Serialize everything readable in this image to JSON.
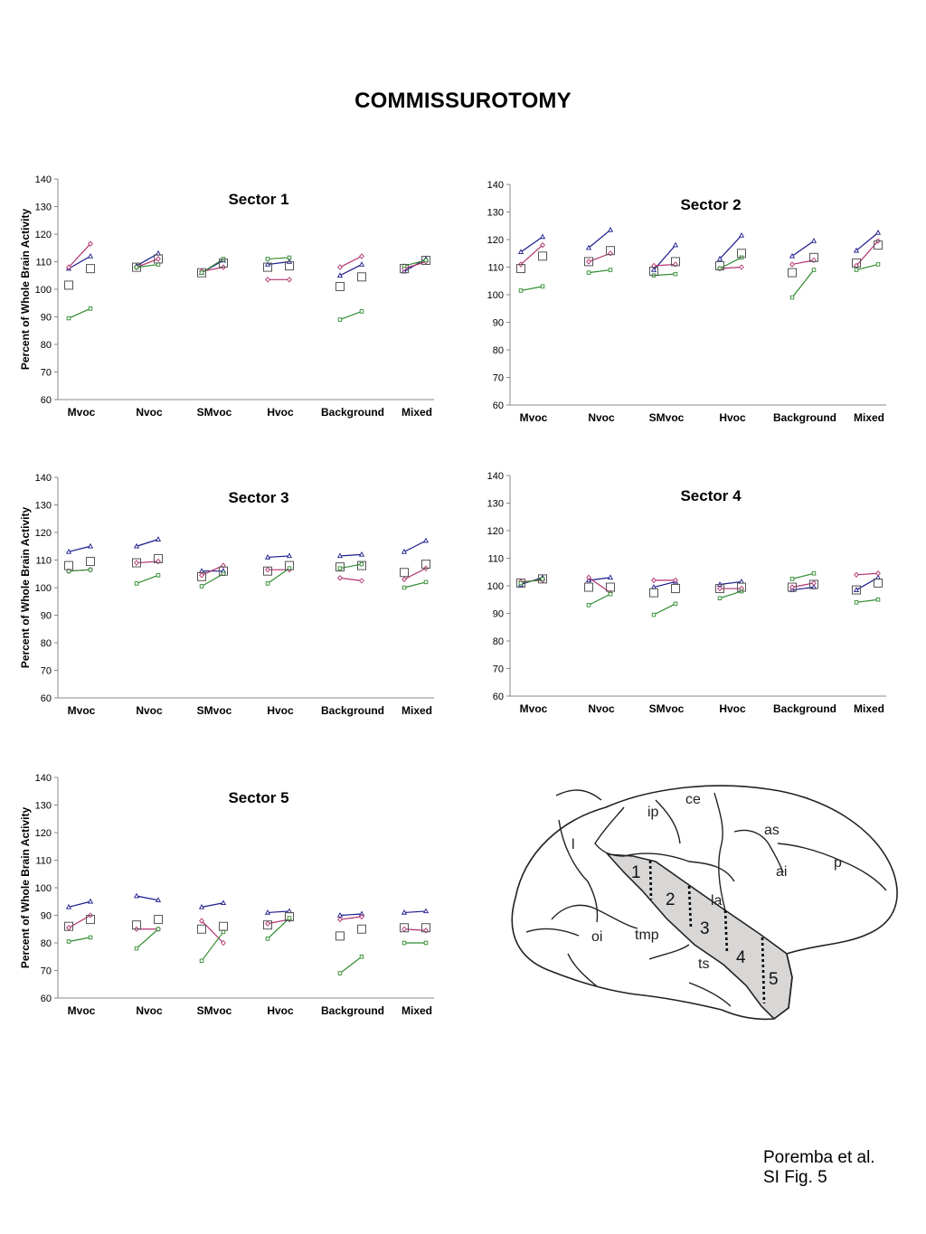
{
  "page_title": "COMMISSUROTOMY",
  "credit": {
    "line1": "Poremba et al.",
    "line2": "SI Fig. 5"
  },
  "brain_labels": {
    "regions": [
      "ce",
      "ip",
      "as",
      "l",
      "ai",
      "p",
      "la",
      "oi",
      "tmp",
      "ts"
    ],
    "sectors": [
      "1",
      "2",
      "3",
      "4",
      "5"
    ]
  },
  "colors": {
    "blue": "#1a1a8c",
    "magenta": "#b0306e",
    "green": "#2e8b2e",
    "square": "#555555"
  },
  "chart_data": [
    {
      "type": "scatter",
      "title": "Sector 1",
      "ylabel": "Percent of Whole Brain Activity",
      "categories": [
        "Mvoc",
        "Nvoc",
        "SMvoc",
        "Hvoc",
        "Background",
        "Mixed"
      ],
      "ylim": [
        60,
        140
      ],
      "yticks": [
        60,
        70,
        80,
        90,
        100,
        110,
        120,
        130,
        140
      ],
      "grid": false,
      "blue": [
        [
          107.5,
          112
        ],
        [
          108.5,
          113
        ],
        [
          106,
          110.5
        ],
        [
          109,
          110
        ],
        [
          105,
          109
        ],
        [
          106.5,
          111
        ]
      ],
      "magenta": [
        [
          108,
          116.5
        ],
        [
          108,
          111
        ],
        [
          106.5,
          108
        ],
        [
          103.5,
          103.5
        ],
        [
          108,
          112
        ],
        [
          107.5,
          110
        ]
      ],
      "green": [
        [
          89.5,
          93
        ],
        [
          108,
          109
        ],
        [
          106,
          111
        ],
        [
          111,
          111.5
        ],
        [
          89,
          92
        ],
        [
          108.5,
          110.5
        ]
      ],
      "squares": [
        [
          101.5,
          107.5
        ],
        [
          108,
          111
        ],
        [
          106,
          109.5
        ],
        [
          108,
          108.5
        ],
        [
          101,
          104.5
        ],
        [
          107.5,
          110.5
        ]
      ]
    },
    {
      "type": "scatter",
      "title": "Sector 2",
      "ylabel": "",
      "categories": [
        "Mvoc",
        "Nvoc",
        "SMvoc",
        "Hvoc",
        "Background",
        "Mixed"
      ],
      "ylim": [
        60,
        140
      ],
      "yticks": [
        60,
        70,
        80,
        90,
        100,
        110,
        120,
        130,
        140
      ],
      "grid": false,
      "blue": [
        [
          115.5,
          121
        ],
        [
          117,
          123.5
        ],
        [
          109,
          118
        ],
        [
          113,
          121.5
        ],
        [
          114,
          119.5
        ],
        [
          116,
          122.5
        ]
      ],
      "magenta": [
        [
          111,
          118
        ],
        [
          112,
          115
        ],
        [
          110.5,
          111
        ],
        [
          109.5,
          110
        ],
        [
          111,
          112.5
        ],
        [
          110.5,
          119.5
        ]
      ],
      "green": [
        [
          101.5,
          103
        ],
        [
          108,
          109
        ],
        [
          107,
          107.5
        ],
        [
          109.5,
          113.5
        ],
        [
          99,
          109
        ],
        [
          109,
          111
        ]
      ],
      "squares": [
        [
          109.5,
          114
        ],
        [
          112,
          116
        ],
        [
          108.5,
          112
        ],
        [
          110.5,
          115
        ],
        [
          108,
          113.5
        ],
        [
          111.5,
          118
        ]
      ]
    },
    {
      "type": "scatter",
      "title": "Sector 3",
      "ylabel": "Percent of Whole Brain Activity",
      "categories": [
        "Mvoc",
        "Nvoc",
        "SMvoc",
        "Hvoc",
        "Background",
        "Mixed"
      ],
      "ylim": [
        60,
        140
      ],
      "yticks": [
        60,
        70,
        80,
        90,
        100,
        110,
        120,
        130,
        140
      ],
      "grid": false,
      "blue": [
        [
          113,
          115
        ],
        [
          115,
          117.5
        ],
        [
          106,
          106
        ],
        [
          111,
          111.5
        ],
        [
          111.5,
          112
        ],
        [
          113,
          117
        ]
      ],
      "magenta": [
        [
          106,
          106.5
        ],
        [
          109,
          109.5
        ],
        [
          104.5,
          108
        ],
        [
          106.5,
          106.5
        ],
        [
          103.5,
          102.5
        ],
        [
          103,
          107
        ]
      ],
      "green": [
        [
          106,
          106.5
        ],
        [
          101.5,
          104.5
        ],
        [
          100.5,
          105
        ],
        [
          101.5,
          107
        ],
        [
          107,
          108.5
        ],
        [
          100,
          102
        ]
      ],
      "squares": [
        [
          108,
          109.5
        ],
        [
          109,
          110.5
        ],
        [
          104,
          106
        ],
        [
          106,
          108
        ],
        [
          107.5,
          108
        ],
        [
          105.5,
          108.5
        ]
      ]
    },
    {
      "type": "scatter",
      "title": "Sector 4",
      "ylabel": "",
      "categories": [
        "Mvoc",
        "Nvoc",
        "SMvoc",
        "Hvoc",
        "Background",
        "Mixed"
      ],
      "ylim": [
        60,
        140
      ],
      "yticks": [
        60,
        70,
        80,
        90,
        100,
        110,
        120,
        130,
        140
      ],
      "grid": false,
      "blue": [
        [
          100.5,
          103
        ],
        [
          102,
          103
        ],
        [
          99.5,
          101.5
        ],
        [
          100.5,
          101.5
        ],
        [
          98.5,
          99.5
        ],
        [
          98.5,
          103
        ]
      ],
      "magenta": [
        [
          101.5,
          102
        ],
        [
          103,
          97.5
        ],
        [
          102,
          102
        ],
        [
          99,
          99
        ],
        [
          99.5,
          101
        ],
        [
          104,
          104.5
        ]
      ],
      "green": [
        [
          101,
          102.5
        ],
        [
          93,
          97
        ],
        [
          89.5,
          93.5
        ],
        [
          95.5,
          98
        ],
        [
          102.5,
          104.5
        ],
        [
          94,
          95
        ]
      ],
      "squares": [
        [
          101,
          102.5
        ],
        [
          99.5,
          99.5
        ],
        [
          97.5,
          99
        ],
        [
          99,
          99.5
        ],
        [
          99.5,
          100.5
        ],
        [
          98.5,
          101
        ]
      ]
    },
    {
      "type": "scatter",
      "title": "Sector 5",
      "ylabel": "Percent of Whole Brain Activity",
      "categories": [
        "Mvoc",
        "Nvoc",
        "SMvoc",
        "Hvoc",
        "Background",
        "Mixed"
      ],
      "ylim": [
        60,
        140
      ],
      "yticks": [
        60,
        70,
        80,
        90,
        100,
        110,
        120,
        130,
        140
      ],
      "grid": false,
      "blue": [
        [
          93,
          95
        ],
        [
          97,
          95.5
        ],
        [
          93,
          94.5
        ],
        [
          91,
          91.5
        ],
        [
          90,
          90.5
        ],
        [
          91,
          91.5
        ]
      ],
      "magenta": [
        [
          85.5,
          90
        ],
        [
          85,
          85
        ],
        [
          88,
          80
        ],
        [
          87,
          88.5
        ],
        [
          88.5,
          89.5
        ],
        [
          85,
          84.5
        ]
      ],
      "green": [
        [
          80.5,
          82
        ],
        [
          78,
          85
        ],
        [
          73.5,
          84
        ],
        [
          81.5,
          89
        ],
        [
          69,
          75
        ],
        [
          80,
          80
        ]
      ],
      "squares": [
        [
          86,
          88.5
        ],
        [
          86.5,
          88.5
        ],
        [
          85,
          86
        ],
        [
          86.5,
          89.5
        ],
        [
          82.5,
          85
        ],
        [
          85.5,
          85.5
        ]
      ]
    }
  ]
}
